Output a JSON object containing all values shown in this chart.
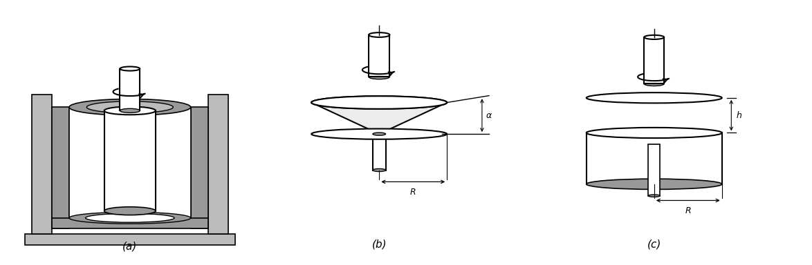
{
  "labels_a": "(a)",
  "labels_b": "(b)",
  "labels_c": "(c)",
  "bg_color": "#ffffff",
  "line_color": "#000000",
  "gray_light": "#bbbbbb",
  "gray_mid": "#999999",
  "gray_dark": "#777777",
  "label_fontsize": 11
}
